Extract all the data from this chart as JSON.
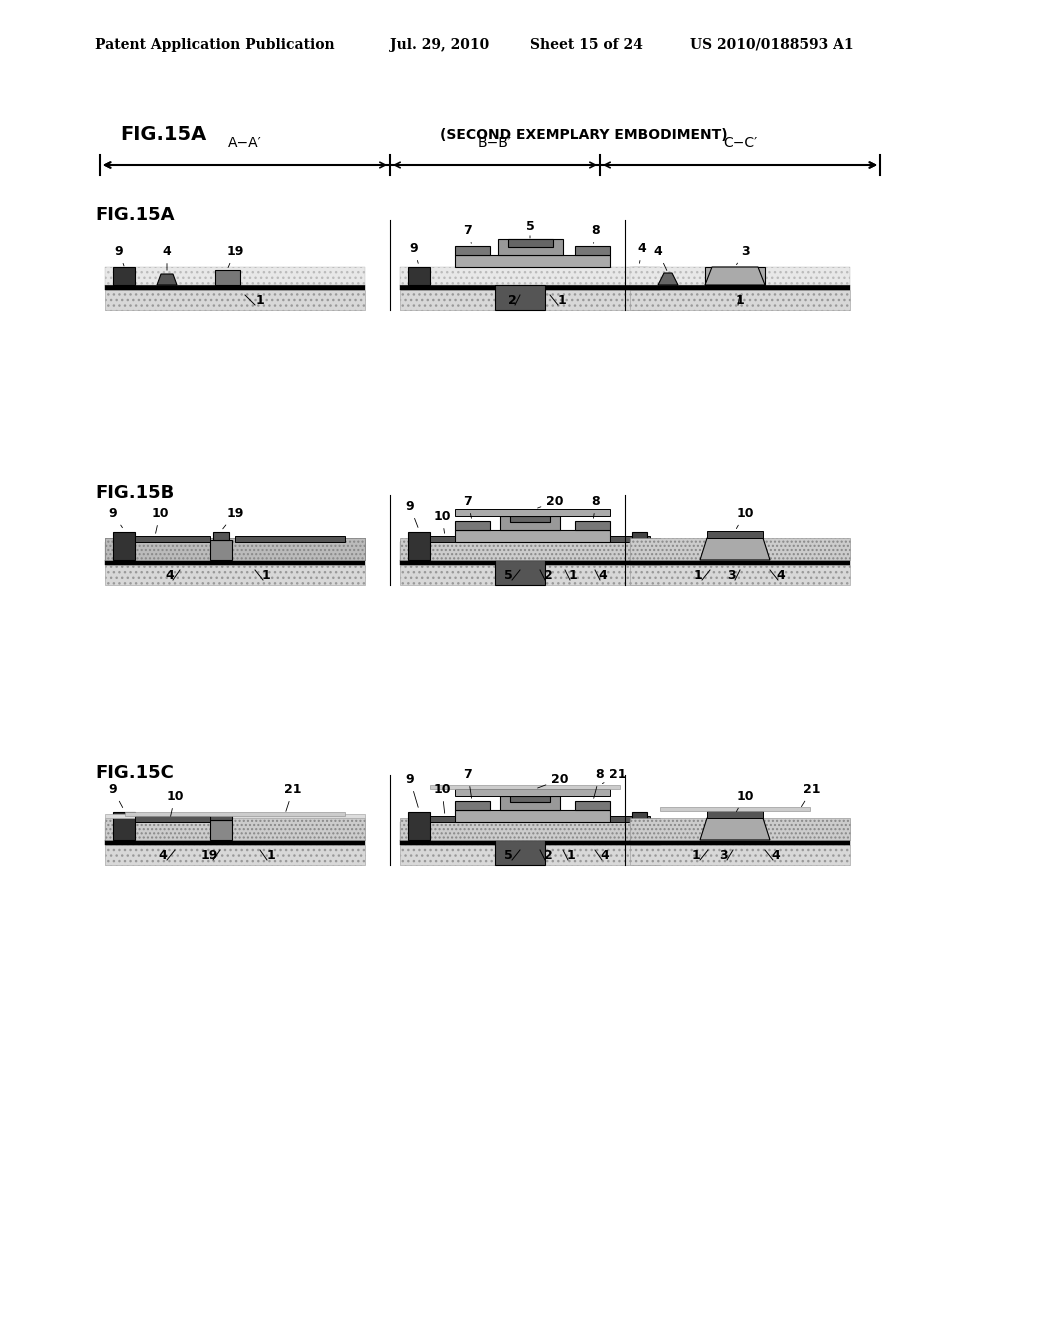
{
  "title_line1": "Patent Application Publication",
  "title_date": "Jul. 29, 2010",
  "title_sheet": "Sheet 15 of 24",
  "title_patent": "US 2010/0188593 A1",
  "fig_labels": [
    "FIG.15A",
    "FIG.15B",
    "FIG.15C"
  ],
  "second_embodiment": "(SECOND EXEMPLARY EMBODIMENT)",
  "section_labels": [
    "A−A′",
    "B−B′",
    "C−C′"
  ],
  "bg_color": "#ffffff",
  "dark_gray": "#555555",
  "medium_gray": "#888888",
  "light_gray": "#bbbbbb",
  "dot_gray": "#cccccc",
  "black": "#000000",
  "dark_fill": "#444444",
  "stripe_fill": "#aaaaaa"
}
